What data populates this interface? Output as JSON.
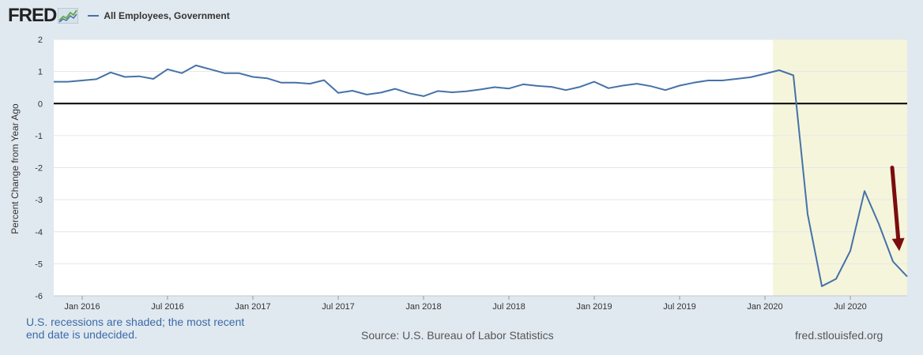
{
  "header": {
    "logo_text": "FRED",
    "logo_icon": "fred-chart-logo-icon",
    "legend_label": "All Employees, Government",
    "legend_color": "#4572a7"
  },
  "footer": {
    "recession_note": "U.S. recessions are shaded; the most recent end date is undecided.",
    "source": "Source: U.S. Bureau of Labor Statistics",
    "url": "fred.stlouisfed.org"
  },
  "colors": {
    "background": "#e1e9f0",
    "plot_background": "#ffffff",
    "recession_shade": "#f5f5dc",
    "line": "#4572a7",
    "zero_line": "#000000",
    "arrow": "#7b0d0d"
  },
  "chart_data": {
    "type": "line",
    "title": "",
    "xlabel": "",
    "ylabel": "Percent Change from Year Ago",
    "ylim": [
      -6,
      2
    ],
    "yticks": [
      "2",
      "1",
      "0",
      "-1",
      "-2",
      "-3",
      "-4",
      "-5",
      "-6"
    ],
    "xlim": [
      "2015-11",
      "2020-11"
    ],
    "xticks": [
      {
        "label": "Jan 2016",
        "date": "2016-01"
      },
      {
        "label": "Jul 2016",
        "date": "2016-07"
      },
      {
        "label": "Jan 2017",
        "date": "2017-01"
      },
      {
        "label": "Jul 2017",
        "date": "2017-07"
      },
      {
        "label": "Jan 2018",
        "date": "2018-01"
      },
      {
        "label": "Jul 2018",
        "date": "2018-07"
      },
      {
        "label": "Jan 2019",
        "date": "2019-01"
      },
      {
        "label": "Jul 2019",
        "date": "2019-07"
      },
      {
        "label": "Jan 2020",
        "date": "2020-01"
      },
      {
        "label": "Jul 2020",
        "date": "2020-07"
      }
    ],
    "grid": true,
    "recession_shading": {
      "start": "2020-02",
      "end": "2020-11"
    },
    "annotation": {
      "type": "arrow",
      "from": [
        "2020-08",
        -2.0
      ],
      "to": [
        "2020-10",
        -4.7
      ]
    },
    "series": [
      {
        "name": "All Employees, Government",
        "x": [
          "2015-11",
          "2015-12",
          "2016-01",
          "2016-02",
          "2016-03",
          "2016-04",
          "2016-05",
          "2016-06",
          "2016-07",
          "2016-08",
          "2016-09",
          "2016-10",
          "2016-11",
          "2016-12",
          "2017-01",
          "2017-02",
          "2017-03",
          "2017-04",
          "2017-05",
          "2017-06",
          "2017-07",
          "2017-08",
          "2017-09",
          "2017-10",
          "2017-11",
          "2017-12",
          "2018-01",
          "2018-02",
          "2018-03",
          "2018-04",
          "2018-05",
          "2018-06",
          "2018-07",
          "2018-08",
          "2018-09",
          "2018-10",
          "2018-11",
          "2018-12",
          "2019-01",
          "2019-02",
          "2019-03",
          "2019-04",
          "2019-05",
          "2019-06",
          "2019-07",
          "2019-08",
          "2019-09",
          "2019-10",
          "2019-11",
          "2019-12",
          "2020-01",
          "2020-02",
          "2020-03",
          "2020-04",
          "2020-05",
          "2020-06",
          "2020-07",
          "2020-08",
          "2020-09",
          "2020-10",
          "2020-11"
        ],
        "values": [
          0.68,
          0.68,
          0.72,
          0.76,
          0.97,
          0.83,
          0.85,
          0.77,
          1.07,
          0.95,
          1.19,
          1.07,
          0.95,
          0.95,
          0.83,
          0.79,
          0.65,
          0.65,
          0.62,
          0.73,
          0.33,
          0.4,
          0.28,
          0.34,
          0.46,
          0.32,
          0.23,
          0.39,
          0.35,
          0.38,
          0.44,
          0.51,
          0.47,
          0.6,
          0.55,
          0.52,
          0.42,
          0.52,
          0.68,
          0.48,
          0.56,
          0.62,
          0.54,
          0.42,
          0.56,
          0.65,
          0.72,
          0.72,
          0.77,
          0.82,
          0.93,
          1.04,
          0.88,
          -3.45,
          -5.7,
          -5.47,
          -4.6,
          -2.73,
          -3.75,
          -4.93,
          -5.4
        ]
      }
    ]
  }
}
